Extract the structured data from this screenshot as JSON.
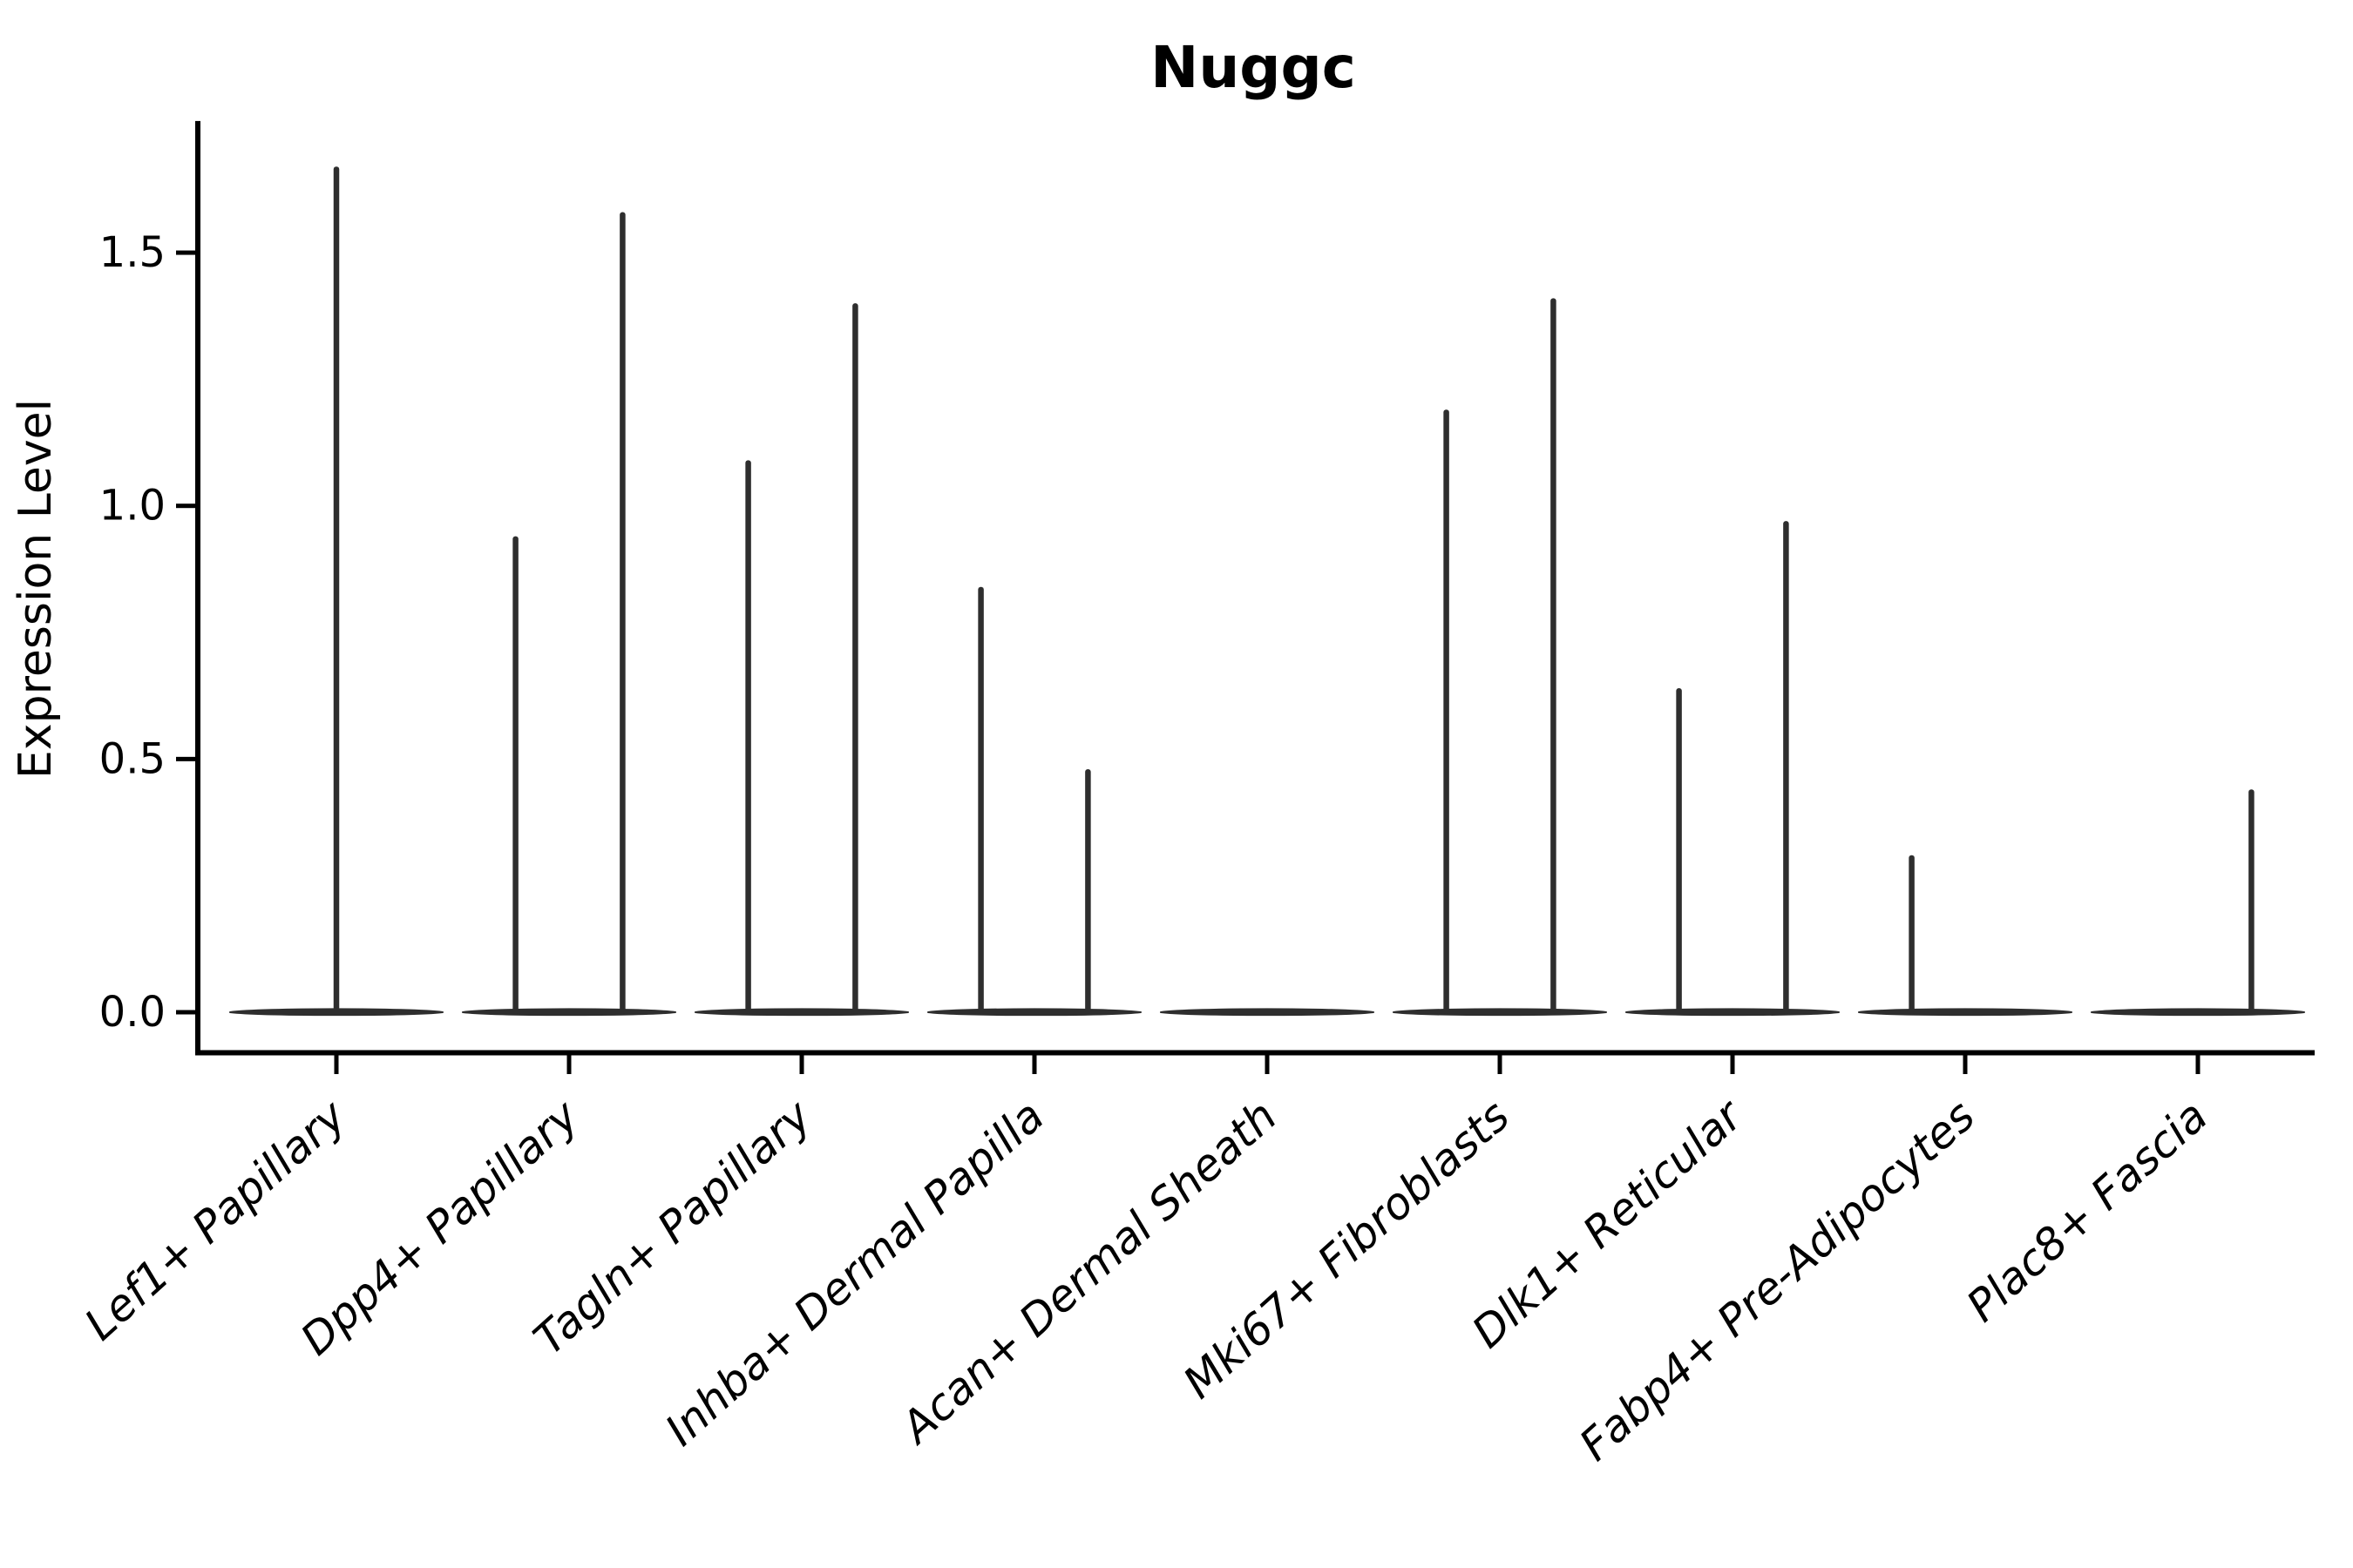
{
  "chart_data": {
    "type": "violin",
    "title": "Nuggc",
    "xlabel": "",
    "ylabel": "Expression Level",
    "yticks": [
      "0.0",
      "0.5",
      "1.0",
      "1.5"
    ],
    "ytick_values": [
      0.0,
      0.5,
      1.0,
      1.5
    ],
    "ylim": [
      -0.08,
      1.76
    ],
    "grid": "off",
    "legend": "none",
    "violin_color": "#2e2e2e",
    "axis_color": "#000000",
    "categories": [
      "Lef1+ Papillary",
      "Dpp4+ Papillary",
      "Tagln+ Papillary",
      "Inhba+ Dermal Papilla",
      "Acan+ Dermal Sheath",
      "Mki67+ Fibroblasts",
      "Dlk1+ Reticular",
      "Fabp4+ Pre-Adipocytes",
      "Plac8+ Fascia"
    ],
    "violins": [
      {
        "category": "Lef1+ Papillary",
        "base_at_zero": true,
        "spikes": [
          {
            "x_offset": 0.0,
            "max": 1.67
          }
        ]
      },
      {
        "category": "Dpp4+ Papillary",
        "base_at_zero": true,
        "spikes": [
          {
            "x_offset": -0.23,
            "max": 0.94
          },
          {
            "x_offset": 0.23,
            "max": 1.58
          }
        ]
      },
      {
        "category": "Tagln+ Papillary",
        "base_at_zero": true,
        "spikes": [
          {
            "x_offset": -0.23,
            "max": 1.09
          },
          {
            "x_offset": 0.23,
            "max": 1.4
          }
        ]
      },
      {
        "category": "Inhba+ Dermal Papilla",
        "base_at_zero": true,
        "spikes": [
          {
            "x_offset": -0.23,
            "max": 0.84
          },
          {
            "x_offset": 0.23,
            "max": 0.48
          }
        ]
      },
      {
        "category": "Acan+ Dermal Sheath",
        "base_at_zero": true,
        "spikes": []
      },
      {
        "category": "Mki67+ Fibroblasts",
        "base_at_zero": true,
        "spikes": [
          {
            "x_offset": -0.23,
            "max": 1.19
          },
          {
            "x_offset": 0.23,
            "max": 1.41
          }
        ]
      },
      {
        "category": "Dlk1+ Reticular",
        "base_at_zero": true,
        "spikes": [
          {
            "x_offset": -0.23,
            "max": 0.64
          },
          {
            "x_offset": 0.23,
            "max": 0.97
          }
        ]
      },
      {
        "category": "Fabp4+ Pre-Adipocytes",
        "base_at_zero": true,
        "spikes": [
          {
            "x_offset": -0.23,
            "max": 0.31
          }
        ]
      },
      {
        "category": "Plac8+ Fascia",
        "base_at_zero": true,
        "spikes": [
          {
            "x_offset": 0.23,
            "max": 0.44
          }
        ]
      }
    ]
  }
}
